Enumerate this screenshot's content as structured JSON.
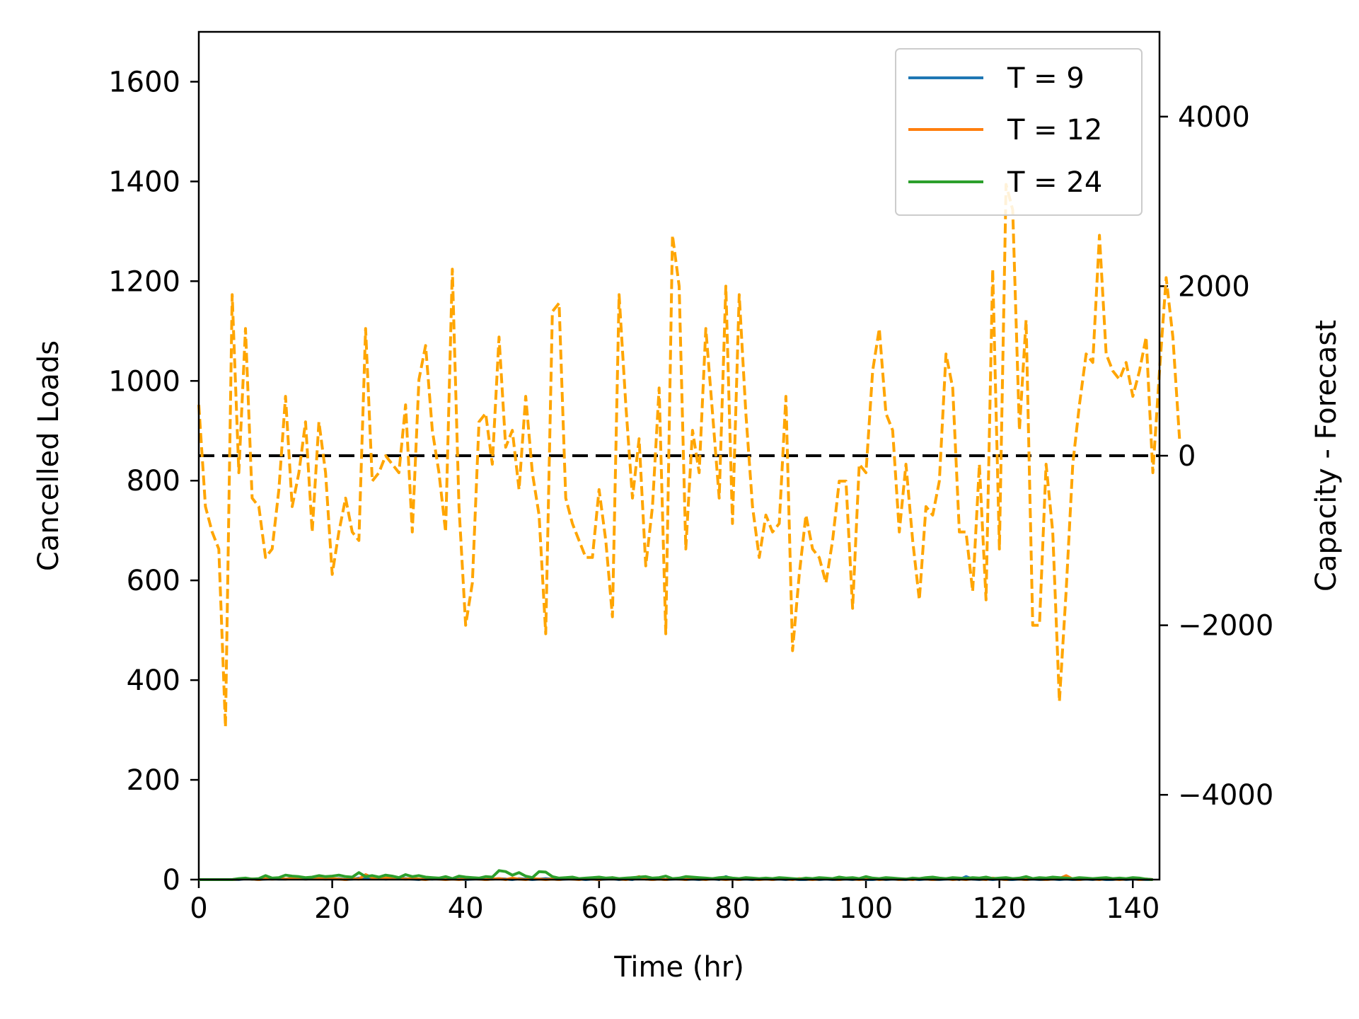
{
  "chart_data": {
    "type": "line",
    "xlabel": "Time (hr)",
    "ylabel_left": "Cancelled Loads",
    "ylabel_right": "Capacity - Forecast",
    "xlim": [
      0,
      144
    ],
    "ylim_left": [
      0,
      1700
    ],
    "ylim_right": [
      -5000,
      5000
    ],
    "x_ticks": [
      "0",
      "20",
      "40",
      "60",
      "80",
      "100",
      "120",
      "140"
    ],
    "y_left_ticks": [
      "0",
      "200",
      "400",
      "600",
      "800",
      "1000",
      "1200",
      "1400",
      "1600"
    ],
    "y_right_ticks": [
      "−4000",
      "−2000",
      "0",
      "2000",
      "4000"
    ],
    "legend_position": "top-right",
    "series": [
      {
        "name": "T = 9",
        "axis": "left",
        "color": "#1f77b4",
        "values": [
          0,
          0,
          0,
          0,
          0,
          0,
          0,
          2,
          1,
          0,
          1,
          2,
          1,
          1,
          3,
          2,
          1,
          2,
          3,
          2,
          1,
          2,
          0,
          1,
          3,
          4,
          2,
          3,
          1,
          2,
          3,
          2,
          1,
          0,
          2,
          1,
          3,
          1,
          2,
          1,
          0,
          1,
          2,
          0,
          1,
          2,
          1,
          0,
          2,
          1,
          0,
          1,
          2,
          1,
          0,
          1,
          2,
          1,
          0,
          1,
          0,
          1,
          2,
          0,
          1,
          0,
          4,
          1,
          0,
          1,
          0,
          1,
          2,
          0,
          1,
          0,
          1,
          2,
          0,
          6,
          1,
          0,
          1,
          0,
          1,
          2,
          0,
          1,
          0,
          1,
          0,
          0,
          1,
          0,
          1,
          0,
          0,
          1,
          0,
          1,
          0,
          0,
          1,
          0,
          1,
          0,
          0,
          1,
          0,
          1,
          0,
          0,
          1,
          2,
          0,
          6,
          1,
          0,
          1,
          0,
          1,
          0,
          0,
          1,
          0,
          1,
          0,
          0,
          1,
          0,
          1,
          0,
          0,
          1,
          0,
          1,
          0,
          0,
          1,
          0,
          1,
          0,
          0,
          0
        ]
      },
      {
        "name": "T = 12",
        "axis": "left",
        "color": "#ff7f0e",
        "values": [
          0,
          0,
          0,
          0,
          0,
          0,
          1,
          2,
          1,
          0,
          2,
          1,
          2,
          1,
          2,
          3,
          1,
          2,
          2,
          1,
          2,
          1,
          0,
          2,
          1,
          10,
          4,
          2,
          3,
          5,
          2,
          1,
          2,
          1,
          0,
          2,
          1,
          0,
          1,
          0,
          1,
          2,
          1,
          0,
          1,
          2,
          0,
          3,
          1,
          0,
          2,
          1,
          0,
          1,
          0,
          2,
          1,
          0,
          2,
          1,
          0,
          2,
          4,
          1,
          0,
          2,
          6,
          1,
          0,
          1,
          0,
          2,
          1,
          0,
          3,
          1,
          0,
          2,
          1,
          0,
          1,
          0,
          2,
          1,
          0,
          1,
          0,
          2,
          1,
          0,
          2,
          1,
          0,
          1,
          2,
          1,
          0,
          2,
          1,
          0,
          1,
          2,
          0,
          1,
          2,
          0,
          1,
          0,
          2,
          1,
          0,
          1,
          2,
          0,
          1,
          0,
          2,
          1,
          0,
          3,
          1,
          0,
          2,
          1,
          0,
          2,
          1,
          0,
          1,
          2,
          8,
          1,
          0,
          2,
          1,
          0,
          2,
          1,
          0,
          1,
          2,
          0,
          1,
          0
        ]
      },
      {
        "name": "T = 24",
        "axis": "left",
        "color": "#2ca02c",
        "values": [
          0,
          0,
          0,
          0,
          0,
          0,
          2,
          3,
          1,
          2,
          8,
          3,
          4,
          9,
          7,
          6,
          4,
          5,
          8,
          6,
          7,
          9,
          6,
          5,
          14,
          6,
          8,
          5,
          9,
          7,
          4,
          10,
          6,
          8,
          5,
          4,
          3,
          6,
          2,
          7,
          5,
          4,
          3,
          6,
          5,
          18,
          16,
          9,
          14,
          7,
          4,
          16,
          15,
          6,
          3,
          4,
          5,
          2,
          3,
          4,
          5,
          3,
          4,
          2,
          3,
          4,
          5,
          6,
          3,
          4,
          7,
          2,
          3,
          6,
          5,
          4,
          3,
          2,
          4,
          5,
          3,
          2,
          4,
          3,
          2,
          3,
          2,
          4,
          3,
          2,
          1,
          3,
          2,
          4,
          3,
          2,
          5,
          3,
          4,
          2,
          6,
          3,
          2,
          4,
          3,
          2,
          1,
          3,
          2,
          4,
          5,
          3,
          2,
          4,
          3,
          2,
          4,
          3,
          5,
          2,
          3,
          4,
          2,
          3,
          6,
          2,
          4,
          3,
          5,
          4,
          3,
          2,
          4,
          3,
          2,
          3,
          4,
          2,
          3,
          2,
          4,
          3,
          1,
          0
        ]
      },
      {
        "name": "",
        "axis": "right",
        "color": "#ffa500",
        "dash": "dashed",
        "values": [
          600,
          -600,
          -900,
          -1100,
          -3200,
          1900,
          -200,
          1500,
          -500,
          -600,
          -1200,
          -1100,
          -400,
          700,
          -600,
          -200,
          400,
          -900,
          400,
          -200,
          -1400,
          -900,
          -500,
          -900,
          -1000,
          1500,
          -300,
          -200,
          0,
          -100,
          -200,
          600,
          -900,
          900,
          1300,
          300,
          -200,
          -900,
          2200,
          -600,
          -2000,
          -1500,
          400,
          500,
          -100,
          1400,
          100,
          300,
          -400,
          700,
          -200,
          -700,
          -2100,
          1700,
          1800,
          -500,
          -800,
          -1000,
          -1200,
          -1200,
          -400,
          -1000,
          -1900,
          1900,
          600,
          -500,
          200,
          -1300,
          -600,
          800,
          -2100,
          2600,
          2000,
          -1100,
          300,
          -200,
          1500,
          500,
          -500,
          2000,
          -800,
          1900,
          500,
          -600,
          -1200,
          -700,
          -900,
          -800,
          700,
          -2300,
          -1400,
          -700,
          -1100,
          -1200,
          -1500,
          -1000,
          -300,
          -300,
          -1800,
          -100,
          -200,
          1000,
          1500,
          500,
          300,
          -900,
          -100,
          -1000,
          -1700,
          -600,
          -700,
          -300,
          1200,
          800,
          -900,
          -900,
          -1600,
          -100,
          -1700,
          2200,
          -1100,
          3200,
          2900,
          300,
          1600,
          -2000,
          -2000,
          -100,
          -900,
          -2900,
          -1600,
          -100,
          600,
          1200,
          1100,
          2600,
          1200,
          1000,
          900,
          1100,
          700,
          1000,
          1400,
          -200,
          1000,
          2100,
          1400,
          200
        ]
      },
      {
        "name": "",
        "axis": "right",
        "color": "#000000",
        "dash": "long-dashed",
        "values": [
          0,
          0
        ]
      }
    ]
  }
}
